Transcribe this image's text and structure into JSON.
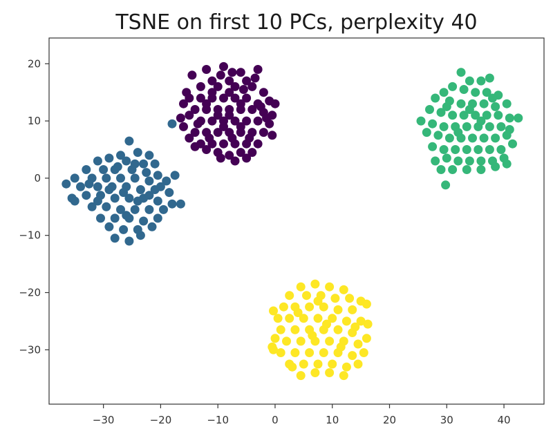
{
  "chart_data": {
    "type": "scatter",
    "title": "TSNE on first 10 PCs, perplexity 40",
    "xlabel": "",
    "ylabel": "",
    "xlim": [
      -39.5,
      47
    ],
    "ylim": [
      -39.5,
      24.5
    ],
    "xticks": [
      -30,
      -20,
      -10,
      0,
      10,
      20,
      30,
      40
    ],
    "yticks": [
      -30,
      -20,
      -10,
      0,
      10,
      20
    ],
    "xtick_labels": [
      "−30",
      "−20",
      "−10",
      "0",
      "10",
      "20",
      "30",
      "40"
    ],
    "ytick_labels": [
      "−30",
      "−20",
      "−10",
      "0",
      "10",
      "20"
    ],
    "grid": false,
    "legend": "none",
    "series": [
      {
        "color": "#440154",
        "points": [
          [
            -14.5,
            18.0
          ],
          [
            -12.0,
            19.0
          ],
          [
            -9.0,
            19.5
          ],
          [
            -6.0,
            18.5
          ],
          [
            -3.0,
            19.0
          ],
          [
            -5.0,
            17.0
          ],
          [
            -8.0,
            17.0
          ],
          [
            -11.0,
            17.0
          ],
          [
            -13.0,
            16.0
          ],
          [
            -10.0,
            16.0
          ],
          [
            -7.0,
            16.0
          ],
          [
            -4.0,
            16.0
          ],
          [
            -2.0,
            15.0
          ],
          [
            -1.0,
            13.5
          ],
          [
            0.0,
            13.0
          ],
          [
            -15.0,
            14.0
          ],
          [
            -16.0,
            13.0
          ],
          [
            -13.0,
            14.0
          ],
          [
            -11.0,
            14.0
          ],
          [
            -9.0,
            14.0
          ],
          [
            -7.0,
            14.0
          ],
          [
            -5.0,
            14.0
          ],
          [
            -3.0,
            13.0
          ],
          [
            -14.0,
            12.0
          ],
          [
            -12.0,
            12.0
          ],
          [
            -10.0,
            12.0
          ],
          [
            -8.0,
            12.0
          ],
          [
            -6.0,
            12.0
          ],
          [
            -4.0,
            12.0
          ],
          [
            -2.0,
            11.5
          ],
          [
            -0.5,
            11.0
          ],
          [
            -16.5,
            10.5
          ],
          [
            -15.0,
            11.0
          ],
          [
            -13.0,
            10.0
          ],
          [
            -11.0,
            10.0
          ],
          [
            -9.0,
            10.0
          ],
          [
            -7.0,
            10.0
          ],
          [
            -5.0,
            10.0
          ],
          [
            -3.0,
            10.0
          ],
          [
            -1.0,
            9.5
          ],
          [
            -16.0,
            9.0
          ],
          [
            -14.0,
            8.0
          ],
          [
            -12.0,
            8.0
          ],
          [
            -10.0,
            8.0
          ],
          [
            -8.0,
            8.0
          ],
          [
            -6.0,
            8.0
          ],
          [
            -4.0,
            8.0
          ],
          [
            -2.0,
            8.0
          ],
          [
            -0.5,
            7.5
          ],
          [
            -15.0,
            7.0
          ],
          [
            -13.0,
            6.0
          ],
          [
            -11.0,
            6.0
          ],
          [
            -9.0,
            6.0
          ],
          [
            -7.0,
            6.0
          ],
          [
            -5.0,
            6.0
          ],
          [
            -3.0,
            6.0
          ],
          [
            -14.0,
            5.5
          ],
          [
            -12.0,
            5.0
          ],
          [
            -10.0,
            4.5
          ],
          [
            -8.0,
            4.0
          ],
          [
            -6.0,
            4.5
          ],
          [
            -4.0,
            4.5
          ],
          [
            -9.5,
            3.5
          ],
          [
            -7.0,
            3.0
          ],
          [
            -5.0,
            3.5
          ],
          [
            -11.0,
            15.0
          ],
          [
            -8.0,
            15.0
          ],
          [
            -12.0,
            13.0
          ],
          [
            -6.0,
            13.0
          ],
          [
            -10.0,
            11.0
          ],
          [
            -8.0,
            11.0
          ],
          [
            -6.0,
            9.0
          ],
          [
            -9.0,
            9.0
          ],
          [
            -11.5,
            7.0
          ],
          [
            -7.5,
            7.0
          ],
          [
            -4.5,
            7.0
          ],
          [
            -2.5,
            12.5
          ],
          [
            -1.5,
            10.5
          ],
          [
            -13.5,
            9.5
          ],
          [
            -5.5,
            15.5
          ],
          [
            -9.5,
            18.0
          ],
          [
            -7.5,
            18.5
          ],
          [
            -3.5,
            17.5
          ],
          [
            -15.5,
            15.0
          ]
        ]
      },
      {
        "color": "#31688e",
        "points": [
          [
            -25.5,
            6.5
          ],
          [
            -27.0,
            4.0
          ],
          [
            -24.0,
            4.5
          ],
          [
            -22.0,
            4.0
          ],
          [
            -29.0,
            3.5
          ],
          [
            -31.0,
            3.0
          ],
          [
            -26.0,
            3.0
          ],
          [
            -23.0,
            2.5
          ],
          [
            -21.0,
            2.5
          ],
          [
            -33.0,
            1.5
          ],
          [
            -30.0,
            1.5
          ],
          [
            -28.0,
            1.5
          ],
          [
            -25.0,
            1.5
          ],
          [
            -22.5,
            1.0
          ],
          [
            -20.5,
            0.5
          ],
          [
            -35.0,
            0.0
          ],
          [
            -32.0,
            0.0
          ],
          [
            -29.5,
            0.0
          ],
          [
            -27.0,
            0.0
          ],
          [
            -24.5,
            0.0
          ],
          [
            -22.0,
            -0.5
          ],
          [
            -19.0,
            -0.5
          ],
          [
            -17.5,
            0.5
          ],
          [
            -36.5,
            -1.0
          ],
          [
            -34.0,
            -1.5
          ],
          [
            -31.0,
            -1.5
          ],
          [
            -28.5,
            -1.5
          ],
          [
            -26.0,
            -1.5
          ],
          [
            -23.5,
            -2.0
          ],
          [
            -21.0,
            -2.0
          ],
          [
            -18.5,
            -2.5
          ],
          [
            -35.5,
            -3.5
          ],
          [
            -33.0,
            -3.0
          ],
          [
            -30.5,
            -3.0
          ],
          [
            -28.0,
            -3.5
          ],
          [
            -25.5,
            -3.5
          ],
          [
            -23.0,
            -3.5
          ],
          [
            -20.5,
            -4.0
          ],
          [
            -18.0,
            -4.5
          ],
          [
            -16.5,
            -4.5
          ],
          [
            -35.0,
            -4.0
          ],
          [
            -32.0,
            -5.0
          ],
          [
            -29.5,
            -5.0
          ],
          [
            -27.0,
            -5.5
          ],
          [
            -24.5,
            -5.5
          ],
          [
            -22.0,
            -5.5
          ],
          [
            -19.5,
            -5.5
          ],
          [
            -30.5,
            -7.0
          ],
          [
            -28.0,
            -7.0
          ],
          [
            -25.5,
            -7.0
          ],
          [
            -23.0,
            -7.5
          ],
          [
            -20.5,
            -7.0
          ],
          [
            -29.0,
            -8.5
          ],
          [
            -26.5,
            -9.0
          ],
          [
            -24.0,
            -9.0
          ],
          [
            -21.5,
            -8.5
          ],
          [
            -28.0,
            -10.5
          ],
          [
            -25.5,
            -11.0
          ],
          [
            -23.5,
            -10.0
          ],
          [
            -18.0,
            9.5
          ],
          [
            -31.0,
            -4.0
          ],
          [
            -26.5,
            -2.5
          ],
          [
            -24.0,
            -4.0
          ],
          [
            -22.0,
            -3.0
          ],
          [
            -27.5,
            2.0
          ],
          [
            -24.5,
            2.5
          ],
          [
            -32.5,
            -1.0
          ],
          [
            -20.0,
            -1.5
          ],
          [
            -26.0,
            -6.5
          ],
          [
            -29.0,
            -2.0
          ]
        ]
      },
      {
        "color": "#35b779",
        "points": [
          [
            32.5,
            18.5
          ],
          [
            34.0,
            17.0
          ],
          [
            36.0,
            17.0
          ],
          [
            37.5,
            17.5
          ],
          [
            31.0,
            16.0
          ],
          [
            29.5,
            15.0
          ],
          [
            33.0,
            15.5
          ],
          [
            35.0,
            15.0
          ],
          [
            37.0,
            15.0
          ],
          [
            39.0,
            14.5
          ],
          [
            28.0,
            14.0
          ],
          [
            30.5,
            13.5
          ],
          [
            32.5,
            13.0
          ],
          [
            34.5,
            13.0
          ],
          [
            36.5,
            13.0
          ],
          [
            38.5,
            12.5
          ],
          [
            40.5,
            13.0
          ],
          [
            27.0,
            12.0
          ],
          [
            29.0,
            11.5
          ],
          [
            31.0,
            11.0
          ],
          [
            33.0,
            11.0
          ],
          [
            35.0,
            11.0
          ],
          [
            37.0,
            11.0
          ],
          [
            39.0,
            11.0
          ],
          [
            41.0,
            10.5
          ],
          [
            42.5,
            10.5
          ],
          [
            25.5,
            10.0
          ],
          [
            27.5,
            9.5
          ],
          [
            29.5,
            9.0
          ],
          [
            31.5,
            9.0
          ],
          [
            33.5,
            9.0
          ],
          [
            35.5,
            9.0
          ],
          [
            37.5,
            9.0
          ],
          [
            39.5,
            9.0
          ],
          [
            41.0,
            8.5
          ],
          [
            26.5,
            8.0
          ],
          [
            28.5,
            7.5
          ],
          [
            30.5,
            7.0
          ],
          [
            32.5,
            7.0
          ],
          [
            34.5,
            7.0
          ],
          [
            36.5,
            7.0
          ],
          [
            38.5,
            7.0
          ],
          [
            40.5,
            7.5
          ],
          [
            27.5,
            5.5
          ],
          [
            29.5,
            5.0
          ],
          [
            31.5,
            5.0
          ],
          [
            33.5,
            5.0
          ],
          [
            35.5,
            5.0
          ],
          [
            37.5,
            5.0
          ],
          [
            39.5,
            5.0
          ],
          [
            41.5,
            6.0
          ],
          [
            28.0,
            3.0
          ],
          [
            30.0,
            3.5
          ],
          [
            32.0,
            3.0
          ],
          [
            34.0,
            3.0
          ],
          [
            36.0,
            3.0
          ],
          [
            38.0,
            3.0
          ],
          [
            40.0,
            3.5
          ],
          [
            31.0,
            1.5
          ],
          [
            33.5,
            1.5
          ],
          [
            36.0,
            1.5
          ],
          [
            38.5,
            2.0
          ],
          [
            40.5,
            2.5
          ],
          [
            29.0,
            1.5
          ],
          [
            29.8,
            -1.2
          ],
          [
            34.0,
            12.0
          ],
          [
            36.0,
            10.0
          ],
          [
            32.0,
            8.0
          ],
          [
            38.0,
            14.0
          ],
          [
            30.0,
            12.5
          ]
        ]
      },
      {
        "color": "#fde725",
        "points": [
          [
            7.0,
            -18.5
          ],
          [
            9.5,
            -19.0
          ],
          [
            12.0,
            -19.5
          ],
          [
            4.5,
            -19.0
          ],
          [
            2.5,
            -20.5
          ],
          [
            5.5,
            -20.5
          ],
          [
            8.0,
            -20.5
          ],
          [
            10.5,
            -21.0
          ],
          [
            13.0,
            -21.0
          ],
          [
            15.0,
            -21.5
          ],
          [
            16.0,
            -22.0
          ],
          [
            1.5,
            -22.5
          ],
          [
            3.5,
            -22.5
          ],
          [
            6.0,
            -22.5
          ],
          [
            8.5,
            -22.5
          ],
          [
            11.0,
            -23.0
          ],
          [
            13.5,
            -23.0
          ],
          [
            -0.3,
            -23.2
          ],
          [
            0.5,
            -24.5
          ],
          [
            2.5,
            -24.5
          ],
          [
            5.0,
            -24.5
          ],
          [
            7.5,
            -24.5
          ],
          [
            10.0,
            -24.5
          ],
          [
            12.5,
            -25.0
          ],
          [
            15.0,
            -25.0
          ],
          [
            16.2,
            -25.5
          ],
          [
            1.0,
            -26.5
          ],
          [
            3.5,
            -26.5
          ],
          [
            6.0,
            -26.5
          ],
          [
            8.5,
            -26.5
          ],
          [
            11.0,
            -26.5
          ],
          [
            13.5,
            -27.0
          ],
          [
            0.0,
            -28.0
          ],
          [
            2.0,
            -28.5
          ],
          [
            4.5,
            -28.5
          ],
          [
            7.0,
            -28.5
          ],
          [
            9.5,
            -28.5
          ],
          [
            12.0,
            -28.5
          ],
          [
            14.5,
            -29.0
          ],
          [
            16.0,
            -28.0
          ],
          [
            -0.5,
            -29.5
          ],
          [
            1.0,
            -30.5
          ],
          [
            3.5,
            -30.5
          ],
          [
            6.0,
            -30.5
          ],
          [
            8.5,
            -30.5
          ],
          [
            11.0,
            -30.5
          ],
          [
            13.5,
            -31.0
          ],
          [
            15.5,
            -30.5
          ],
          [
            2.5,
            -32.5
          ],
          [
            5.0,
            -32.5
          ],
          [
            7.5,
            -32.5
          ],
          [
            10.0,
            -32.5
          ],
          [
            12.5,
            -33.0
          ],
          [
            14.5,
            -32.5
          ],
          [
            4.5,
            -34.5
          ],
          [
            7.0,
            -34.0
          ],
          [
            9.5,
            -34.0
          ],
          [
            12.0,
            -34.5
          ],
          [
            -0.3,
            -30.0
          ],
          [
            3.0,
            -33.0
          ],
          [
            6.5,
            -27.5
          ],
          [
            9.0,
            -25.5
          ],
          [
            11.5,
            -29.5
          ],
          [
            4.0,
            -23.5
          ],
          [
            14.0,
            -26.0
          ],
          [
            7.5,
            -21.5
          ]
        ]
      }
    ]
  }
}
